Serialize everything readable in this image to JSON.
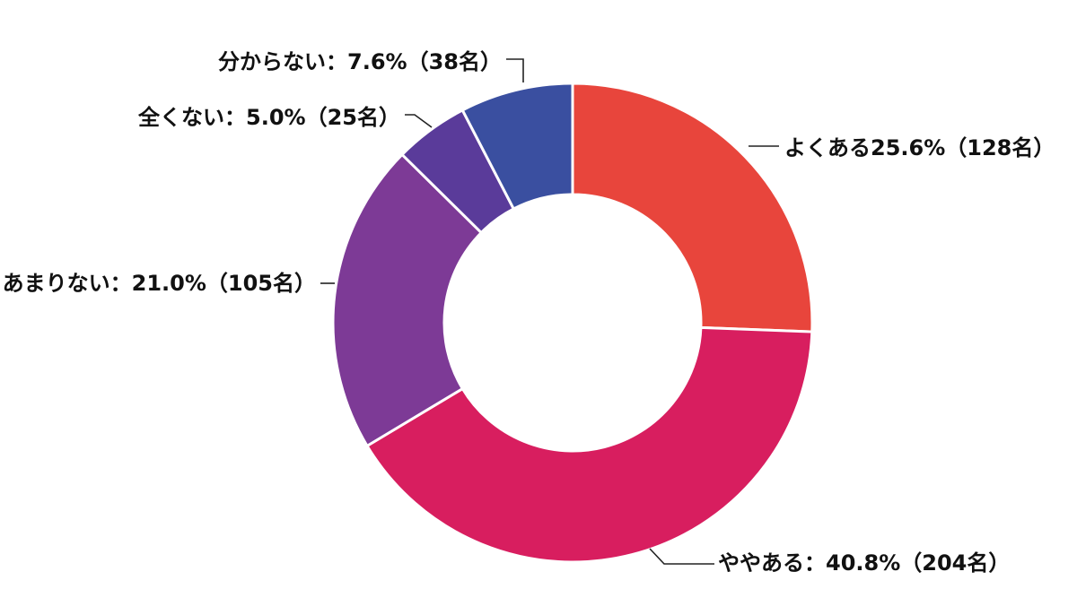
{
  "chart_data": {
    "type": "pie",
    "donut": true,
    "categories": [
      "よくある",
      "ややある",
      "あまりない",
      "全くない",
      "分からない"
    ],
    "values": [
      25.6,
      40.8,
      21.0,
      5.0,
      7.6
    ],
    "counts": [
      128,
      204,
      105,
      25,
      38
    ],
    "labels": [
      "よくある25.6%（128名）",
      "ややある：40.8%（204名）",
      "あまりない：21.0%（105名）",
      "全くない：5.0%（25名）",
      "分からない：7.6%（38名）"
    ],
    "colors": [
      "#E8453C",
      "#D81E5F",
      "#7D3A96",
      "#5A3B9A",
      "#3A4FA0"
    ],
    "start": "12 o'clock",
    "direction": "clockwise"
  }
}
